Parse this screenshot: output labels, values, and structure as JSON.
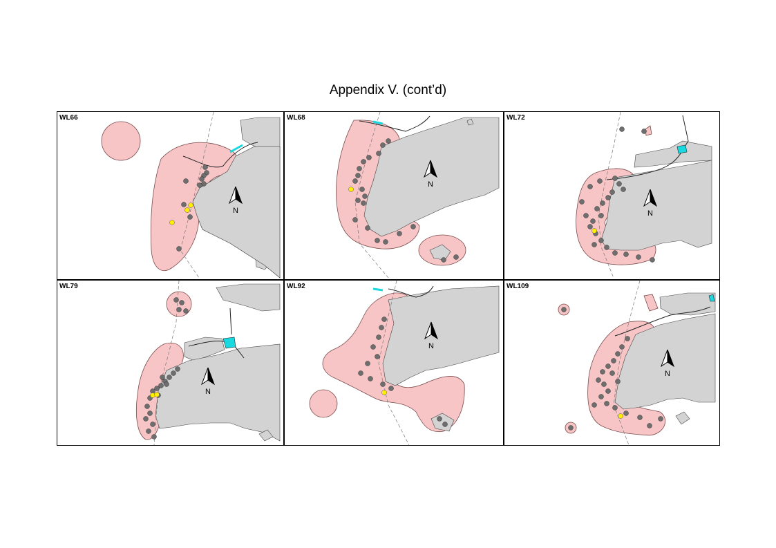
{
  "title": "Appendix V.  (cont’d)",
  "north_label": "N",
  "colors": {
    "land": "#d3d3d3",
    "range": "#f7c5c5",
    "range_stroke": "#7a4a4a",
    "point": "#6e6e6e",
    "point_highlight": "#ffee00",
    "bridge": "#1ad8e0",
    "track": "#777777"
  },
  "panels": [
    {
      "id": "WL66",
      "label": "WL66"
    },
    {
      "id": "WL68",
      "label": "WL68"
    },
    {
      "id": "WL72",
      "label": "WL72"
    },
    {
      "id": "WL79",
      "label": "WL79"
    },
    {
      "id": "WL92",
      "label": "WL92"
    },
    {
      "id": "WL109",
      "label": "WL109"
    }
  ]
}
